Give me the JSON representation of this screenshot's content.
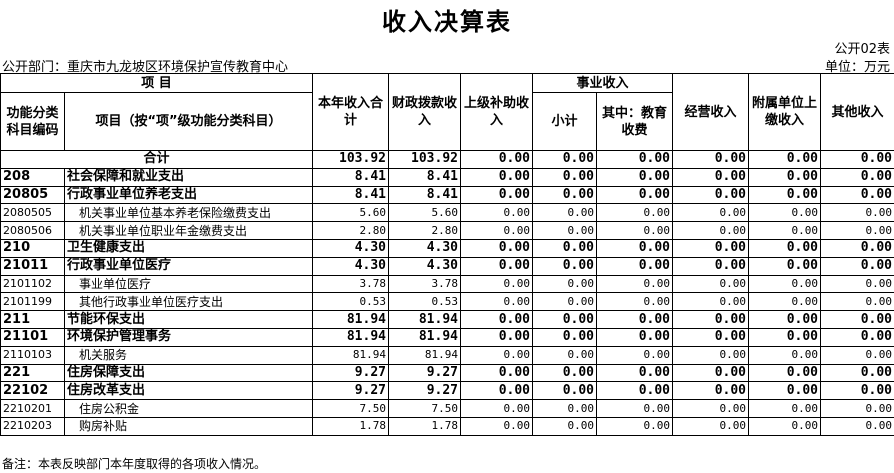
{
  "header": {
    "title": "收入决算表",
    "form_no": "公开02表",
    "department": "公开部门：重庆市九龙坡区环境保护宣传教育中心",
    "unit": "单位：万元"
  },
  "table": {
    "columns": {
      "item_group": "项    目",
      "code": "功能分类科目编码",
      "name": "项目（按“项”级功能分类科目）",
      "total": "本年收入合计",
      "fiscal": "财政拨款收入",
      "superior": "上级补助收入",
      "business": "事业收入",
      "business_sub": "小计",
      "business_edu": "其中：教育收费",
      "operating": "经营收入",
      "affiliated": "附属单位上缴收入",
      "other": "其他收入"
    },
    "total": {
      "label": "合计",
      "values": [
        "103.92",
        "103.92",
        "0.00",
        "0.00",
        "0.00",
        "0.00",
        "0.00",
        "0.00"
      ]
    },
    "rows": [
      {
        "code": "208",
        "name": "社会保障和就业支出",
        "values": [
          "8.41",
          "8.41",
          "0.00",
          "0.00",
          "0.00",
          "0.00",
          "0.00",
          "0.00"
        ]
      },
      {
        "code": "20805",
        "name": "行政事业单位养老支出",
        "values": [
          "8.41",
          "8.41",
          "0.00",
          "0.00",
          "0.00",
          "0.00",
          "0.00",
          "0.00"
        ]
      },
      {
        "code": "2080505",
        "name": "机关事业单位基本养老保险缴费支出",
        "values": [
          "5.60",
          "5.60",
          "0.00",
          "0.00",
          "0.00",
          "0.00",
          "0.00",
          "0.00"
        ]
      },
      {
        "code": "2080506",
        "name": "机关事业单位职业年金缴费支出",
        "values": [
          "2.80",
          "2.80",
          "0.00",
          "0.00",
          "0.00",
          "0.00",
          "0.00",
          "0.00"
        ]
      },
      {
        "code": "210",
        "name": "卫生健康支出",
        "values": [
          "4.30",
          "4.30",
          "0.00",
          "0.00",
          "0.00",
          "0.00",
          "0.00",
          "0.00"
        ]
      },
      {
        "code": "21011",
        "name": "行政事业单位医疗",
        "values": [
          "4.30",
          "4.30",
          "0.00",
          "0.00",
          "0.00",
          "0.00",
          "0.00",
          "0.00"
        ]
      },
      {
        "code": "2101102",
        "name": "事业单位医疗",
        "values": [
          "3.78",
          "3.78",
          "0.00",
          "0.00",
          "0.00",
          "0.00",
          "0.00",
          "0.00"
        ]
      },
      {
        "code": "2101199",
        "name": "其他行政事业单位医疗支出",
        "values": [
          "0.53",
          "0.53",
          "0.00",
          "0.00",
          "0.00",
          "0.00",
          "0.00",
          "0.00"
        ]
      },
      {
        "code": "211",
        "name": "节能环保支出",
        "values": [
          "81.94",
          "81.94",
          "0.00",
          "0.00",
          "0.00",
          "0.00",
          "0.00",
          "0.00"
        ]
      },
      {
        "code": "21101",
        "name": "环境保护管理事务",
        "values": [
          "81.94",
          "81.94",
          "0.00",
          "0.00",
          "0.00",
          "0.00",
          "0.00",
          "0.00"
        ]
      },
      {
        "code": "2110103",
        "name": "机关服务",
        "values": [
          "81.94",
          "81.94",
          "0.00",
          "0.00",
          "0.00",
          "0.00",
          "0.00",
          "0.00"
        ]
      },
      {
        "code": "221",
        "name": "住房保障支出",
        "values": [
          "9.27",
          "9.27",
          "0.00",
          "0.00",
          "0.00",
          "0.00",
          "0.00",
          "0.00"
        ]
      },
      {
        "code": "22102",
        "name": "住房改革支出",
        "values": [
          "9.27",
          "9.27",
          "0.00",
          "0.00",
          "0.00",
          "0.00",
          "0.00",
          "0.00"
        ]
      },
      {
        "code": "2210201",
        "name": "住房公积金",
        "values": [
          "7.50",
          "7.50",
          "0.00",
          "0.00",
          "0.00",
          "0.00",
          "0.00",
          "0.00"
        ]
      },
      {
        "code": "2210203",
        "name": "购房补贴",
        "values": [
          "1.78",
          "1.78",
          "0.00",
          "0.00",
          "0.00",
          "0.00",
          "0.00",
          "0.00"
        ]
      }
    ]
  },
  "footer": {
    "note": "备注：本表反映部门本年度取得的各项收入情况。"
  }
}
